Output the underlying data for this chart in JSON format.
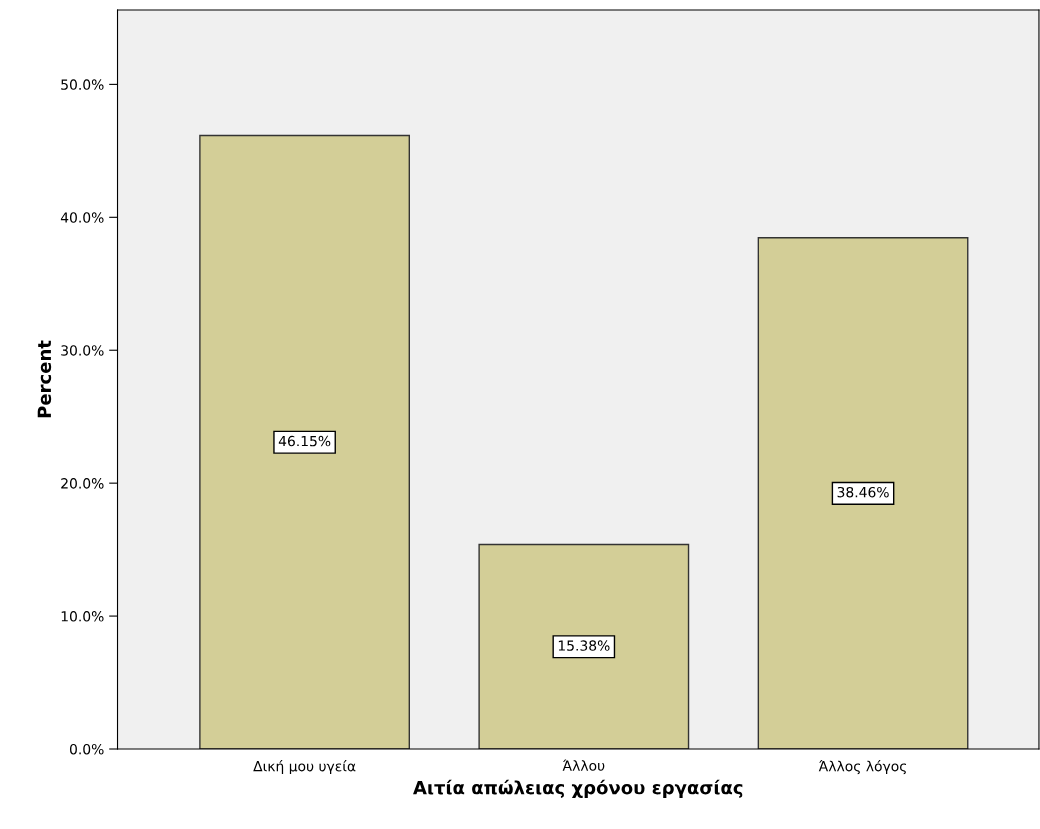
{
  "chart_data": {
    "type": "bar",
    "xlabel": "Αιτία απώλειας χρόνου εργασίας",
    "ylabel": "Percent",
    "categories": [
      "Δική μου υγεία",
      "Άλλου",
      "Άλλος λόγος"
    ],
    "values": [
      46.15,
      15.38,
      38.46
    ],
    "color": "#d3ce97",
    "value_labels": [
      "46.15%",
      "15.38%",
      "38.46%"
    ],
    "ylim": [
      0,
      55.6
    ],
    "yticks": [
      {
        "value": 0,
        "label": "0.0%"
      },
      {
        "value": 10,
        "label": "10.0%"
      },
      {
        "value": 20,
        "label": "20.0%"
      },
      {
        "value": 30,
        "label": "30.0%"
      },
      {
        "value": 40,
        "label": "40.0%"
      },
      {
        "value": 50,
        "label": "50.0%"
      }
    ],
    "grid": false,
    "legend": false
  }
}
